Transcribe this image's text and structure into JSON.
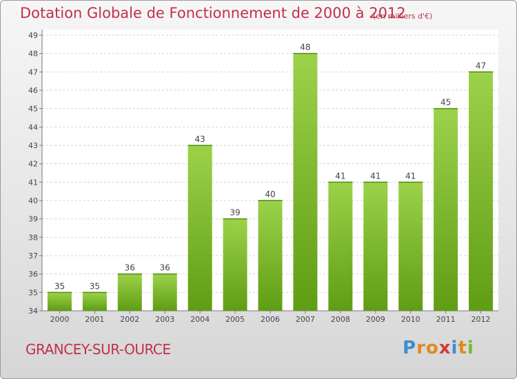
{
  "title": "Dotation Globale de Fonctionnement de 2000 à 2012",
  "unit": "(en milliers d'€)",
  "commune": "GRANCEY-SUR-OURCE",
  "logo": "Proxiti",
  "colors": {
    "bar_light": "#9cd24a",
    "bar_dark": "#5f9d14",
    "title": "#c0304a"
  },
  "chart_data": {
    "type": "bar",
    "title": "Dotation Globale de Fonctionnement de 2000 à 2012",
    "subtitle": "(en milliers d'€)",
    "categories": [
      "2000",
      "2001",
      "2002",
      "2003",
      "2004",
      "2005",
      "2006",
      "2007",
      "2008",
      "2009",
      "2010",
      "2011",
      "2012"
    ],
    "values": [
      35,
      35,
      36,
      36,
      43,
      39,
      40,
      48,
      41,
      41,
      41,
      45,
      47
    ],
    "ylim": [
      34,
      49
    ],
    "yticks": [
      34,
      35,
      36,
      37,
      38,
      39,
      40,
      41,
      42,
      43,
      44,
      45,
      46,
      47,
      48,
      49
    ],
    "grid": true,
    "xlabel": "",
    "ylabel": ""
  }
}
